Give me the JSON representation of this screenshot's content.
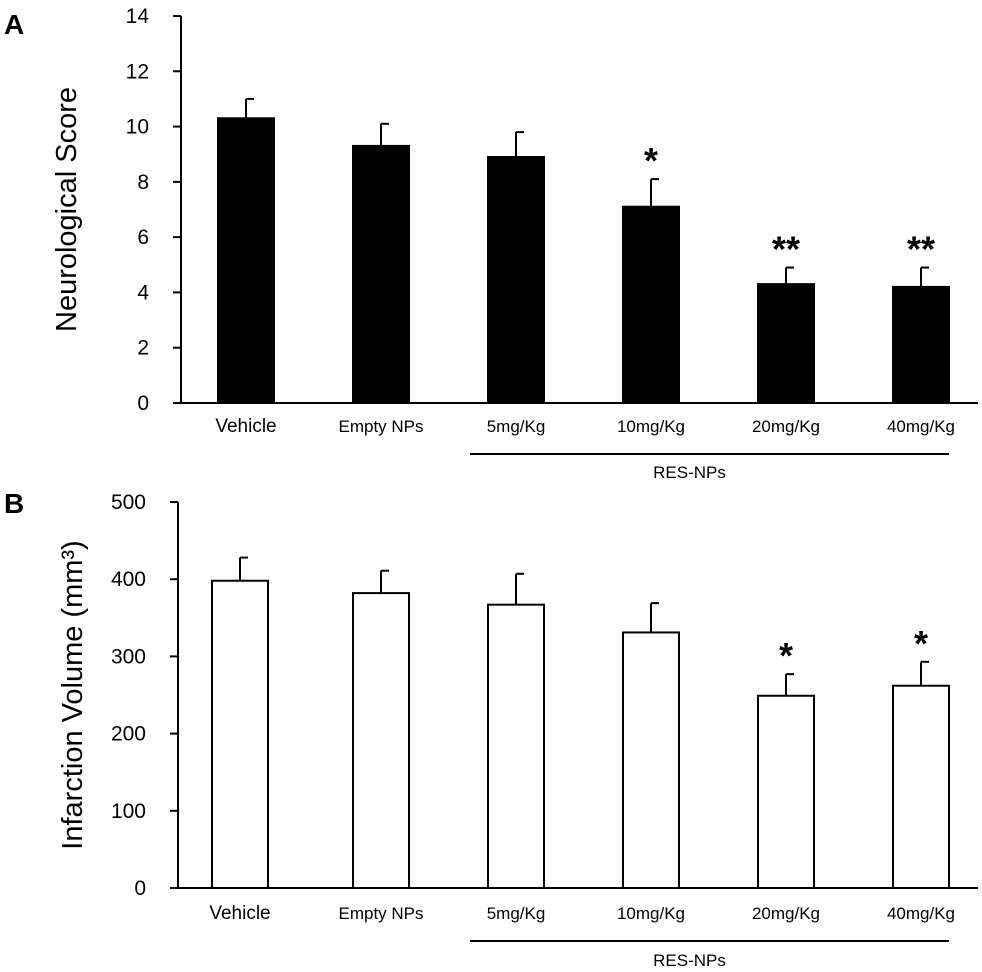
{
  "panels": [
    {
      "letter": "A",
      "chart_data": {
        "type": "bar",
        "title": "",
        "xlabel": "",
        "ylabel": "Neurological Score",
        "ylim": [
          0,
          14
        ],
        "yticks": [
          0,
          2,
          4,
          6,
          8,
          10,
          12,
          14
        ],
        "categories": [
          "Vehicle",
          "Empty NPs",
          "5mg/Kg",
          "10mg/Kg",
          "20mg/Kg",
          "40mg/Kg"
        ],
        "values": [
          10.3,
          9.3,
          8.9,
          7.1,
          4.3,
          4.2
        ],
        "errors": [
          0.7,
          0.8,
          0.9,
          1.0,
          0.6,
          0.7
        ],
        "significance": [
          "",
          "",
          "",
          "*",
          "**",
          "**"
        ],
        "bar_fill": "#000000",
        "group_bracket": {
          "label": "RES-NPs",
          "from_category": 2,
          "to_category": 5
        }
      }
    },
    {
      "letter": "B",
      "chart_data": {
        "type": "bar",
        "title": "",
        "xlabel": "",
        "ylabel": "Infarction Volume (mm³)",
        "ylim": [
          0,
          500
        ],
        "yticks": [
          0,
          100,
          200,
          300,
          400,
          500
        ],
        "categories": [
          "Vehicle",
          "Empty NPs",
          "5mg/Kg",
          "10mg/Kg",
          "20mg/Kg",
          "40mg/Kg"
        ],
        "values": [
          398,
          382,
          367,
          331,
          249,
          262
        ],
        "errors": [
          30,
          29,
          40,
          38,
          28,
          31
        ],
        "significance": [
          "",
          "",
          "",
          "",
          "*",
          "*"
        ],
        "bar_fill": "#ffffff",
        "group_bracket": {
          "label": "RES-NPs",
          "from_category": 2,
          "to_category": 5
        }
      }
    }
  ]
}
